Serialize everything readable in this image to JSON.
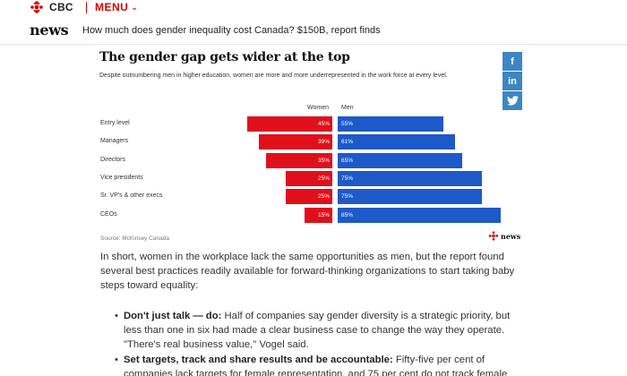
{
  "top": {
    "brand": "CBC",
    "menu_label": "MENU",
    "menu_icon": "chevron-down-icon"
  },
  "header": {
    "section": "news",
    "headline": "How much does gender inequality cost Canada? $150B, report finds"
  },
  "infographic": {
    "title": "The gender gap gets wider at the top",
    "subtitle": "Despite outnumbering men in higher education, women are more and more underrepresented in the work force at every level.",
    "source": "Source: McKinsey Canada",
    "logo_text": "news"
  },
  "social": [
    "f",
    "in",
    "twitter-icon"
  ],
  "chart_data": {
    "type": "bar",
    "categories": [
      "Entry level",
      "Managers",
      "Directors",
      "Vice presidents",
      "Sr. VP's & other execs",
      "CEOs"
    ],
    "series": [
      {
        "name": "Women",
        "values": [
          45,
          39,
          35,
          25,
          25,
          15
        ],
        "labels": [
          "45%",
          "39%",
          "35%",
          "25%",
          "25%",
          "15%"
        ],
        "color": "#e0101b"
      },
      {
        "name": "Men",
        "values": [
          55,
          61,
          65,
          75,
          75,
          85
        ],
        "labels": [
          "55%",
          "61%",
          "65%",
          "75%",
          "75%",
          "85%"
        ],
        "color": "#1e59c9"
      }
    ],
    "title": "The gender gap gets wider at the top",
    "xlabel": "",
    "ylabel": ""
  },
  "article": {
    "paragraph": "In short, women in the workplace lack the same opportunities as men, but the report found several best practices readily available for forward-thinking organizations to start taking baby steps toward equality:",
    "bullets": [
      {
        "bold": "Don't just talk — do:",
        "text": " Half of companies say gender diversity is a strategic priority, but less than one in six had made a clear business case to change the way they operate. \"There's real business value,\" Vogel said."
      },
      {
        "bold": "Set targets, track and share results and be accountable:",
        "text": " Fifty-five per cent of companies lack targets for female representation, and 75 per cent do not track female"
      }
    ]
  }
}
